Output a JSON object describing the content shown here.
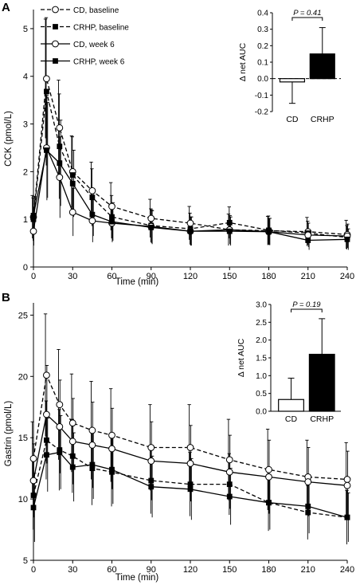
{
  "panels": [
    {
      "letter": "A",
      "legend": [
        {
          "label": "CD, baseline",
          "style": "dash",
          "marker": "circle-open"
        },
        {
          "label": "CRHP, baseline",
          "style": "dash",
          "marker": "square-filled"
        },
        {
          "label": "CD, week 6",
          "style": "solid",
          "marker": "circle-open"
        },
        {
          "label": "CRHP, week 6",
          "style": "solid",
          "marker": "square-filled"
        }
      ],
      "inset": {
        "ylabel": "Δ net AUC",
        "p_label": "P = 0.41"
      }
    },
    {
      "letter": "B",
      "legend": [],
      "inset": {
        "ylabel": "Δ net AUC",
        "p_label": "P = 0.19"
      }
    }
  ],
  "chart_data": [
    {
      "type": "line",
      "xlabel": "Time (min)",
      "ylabel": "CCK (pmol/L)",
      "x": [
        0,
        10,
        20,
        30,
        45,
        60,
        90,
        120,
        150,
        180,
        210,
        240
      ],
      "xticks": [
        0,
        30,
        60,
        90,
        120,
        150,
        180,
        210,
        240
      ],
      "yticks": [
        0,
        1,
        2,
        3,
        4,
        5
      ],
      "xlim": [
        0,
        240
      ],
      "ylim": [
        0,
        5.4
      ],
      "series": [
        {
          "name": "CD, baseline",
          "line": "dash",
          "marker": "circle-open",
          "values": [
            1.05,
            3.95,
            2.92,
            2.0,
            1.6,
            1.27,
            1.02,
            0.92,
            0.78,
            0.76,
            0.74,
            0.68
          ],
          "err": [
            0.45,
            1.25,
            1.0,
            0.75,
            0.6,
            0.5,
            0.4,
            0.35,
            0.33,
            0.3,
            0.3,
            0.3
          ]
        },
        {
          "name": "CRHP, baseline",
          "line": "dash",
          "marker": "square-filled",
          "values": [
            1.0,
            3.68,
            2.53,
            1.93,
            1.46,
            1.05,
            0.87,
            0.8,
            0.93,
            0.77,
            0.71,
            0.62
          ],
          "err": [
            0.45,
            1.55,
            1.1,
            0.8,
            0.6,
            0.45,
            0.35,
            0.33,
            0.33,
            0.3,
            0.25,
            0.25
          ]
        },
        {
          "name": "CD, week 6",
          "line": "solid",
          "marker": "circle-open",
          "values": [
            0.75,
            2.5,
            1.88,
            1.15,
            0.97,
            0.92,
            0.85,
            0.75,
            0.78,
            0.74,
            0.67,
            0.65
          ],
          "err": [
            0.3,
            1.1,
            0.85,
            0.5,
            0.45,
            0.4,
            0.35,
            0.3,
            0.3,
            0.28,
            0.25,
            0.25
          ]
        },
        {
          "name": "CRHP, week 6",
          "line": "solid",
          "marker": "square-filled",
          "values": [
            1.08,
            2.45,
            2.18,
            1.75,
            1.1,
            0.95,
            0.83,
            0.75,
            0.75,
            0.74,
            0.56,
            0.58
          ],
          "err": [
            0.4,
            1.0,
            0.9,
            0.7,
            0.45,
            0.4,
            0.35,
            0.3,
            0.3,
            0.28,
            0.2,
            0.22
          ]
        }
      ],
      "inset": {
        "type": "bar",
        "categories": [
          "CD",
          "CRHP"
        ],
        "values": [
          -0.02,
          0.15
        ],
        "err": [
          0.13,
          0.16
        ],
        "ylim": [
          -0.2,
          0.4
        ],
        "yticks": [
          -0.2,
          -0.1,
          0.0,
          0.1,
          0.2,
          0.3,
          0.4
        ],
        "yticklabels": [
          "-0.2",
          "-0.1",
          "0.0",
          "0.1",
          "0.2",
          "0.3",
          "0.4"
        ]
      }
    },
    {
      "type": "line",
      "xlabel": "Time (min)",
      "ylabel": "Gastrin (pmol/L)",
      "x": [
        0,
        10,
        20,
        30,
        45,
        60,
        90,
        120,
        150,
        180,
        210,
        240
      ],
      "xticks": [
        0,
        30,
        60,
        90,
        120,
        150,
        180,
        210,
        240
      ],
      "yticks": [
        5,
        10,
        15,
        20,
        25
      ],
      "xlim": [
        0,
        240
      ],
      "ylim": [
        5,
        26
      ],
      "series": [
        {
          "name": "CD, baseline",
          "line": "dash",
          "marker": "circle-open",
          "values": [
            13.3,
            20.1,
            17.7,
            16.2,
            15.6,
            15.2,
            14.2,
            14.2,
            13.2,
            12.4,
            11.8,
            11.6
          ],
          "err": [
            3.0,
            5.0,
            4.5,
            4.0,
            4.0,
            3.8,
            3.5,
            3.5,
            3.3,
            3.3,
            3.0,
            3.0
          ]
        },
        {
          "name": "CRHP, baseline",
          "line": "dash",
          "marker": "square-filled",
          "values": [
            10.3,
            14.8,
            14.0,
            13.5,
            12.5,
            12.2,
            11.5,
            11.2,
            11.2,
            9.7,
            8.9,
            8.5
          ],
          "err": [
            2.8,
            3.2,
            3.3,
            3.0,
            3.0,
            2.8,
            2.7,
            2.6,
            2.5,
            2.3,
            2.2,
            2.2
          ]
        },
        {
          "name": "CD, week 6",
          "line": "solid",
          "marker": "circle-open",
          "values": [
            11.5,
            16.9,
            15.9,
            14.7,
            14.4,
            14.1,
            13.1,
            12.9,
            12.2,
            11.8,
            11.4,
            11.1
          ],
          "err": [
            3.0,
            4.0,
            3.8,
            3.5,
            3.5,
            3.3,
            3.2,
            3.1,
            3.0,
            3.0,
            2.8,
            2.8
          ]
        },
        {
          "name": "CRHP, week 6",
          "line": "solid",
          "marker": "square-filled",
          "values": [
            9.3,
            13.6,
            13.8,
            12.6,
            12.8,
            12.4,
            11.0,
            10.8,
            10.2,
            9.7,
            9.4,
            8.5
          ],
          "err": [
            2.8,
            3.0,
            3.0,
            2.8,
            2.8,
            2.8,
            2.5,
            2.5,
            2.3,
            2.2,
            2.2,
            2.0
          ]
        }
      ],
      "inset": {
        "type": "bar",
        "categories": [
          "CD",
          "CRHP"
        ],
        "values": [
          0.33,
          1.6
        ],
        "err": [
          0.6,
          1.0
        ],
        "ylim": [
          0,
          3.0
        ],
        "yticks": [
          0,
          0.5,
          1.0,
          1.5,
          2.0,
          2.5,
          3.0
        ],
        "yticklabels": [
          "0.0",
          "0.5",
          "1.0",
          "1.5",
          "2.0",
          "2.5",
          "3.0"
        ]
      }
    }
  ]
}
